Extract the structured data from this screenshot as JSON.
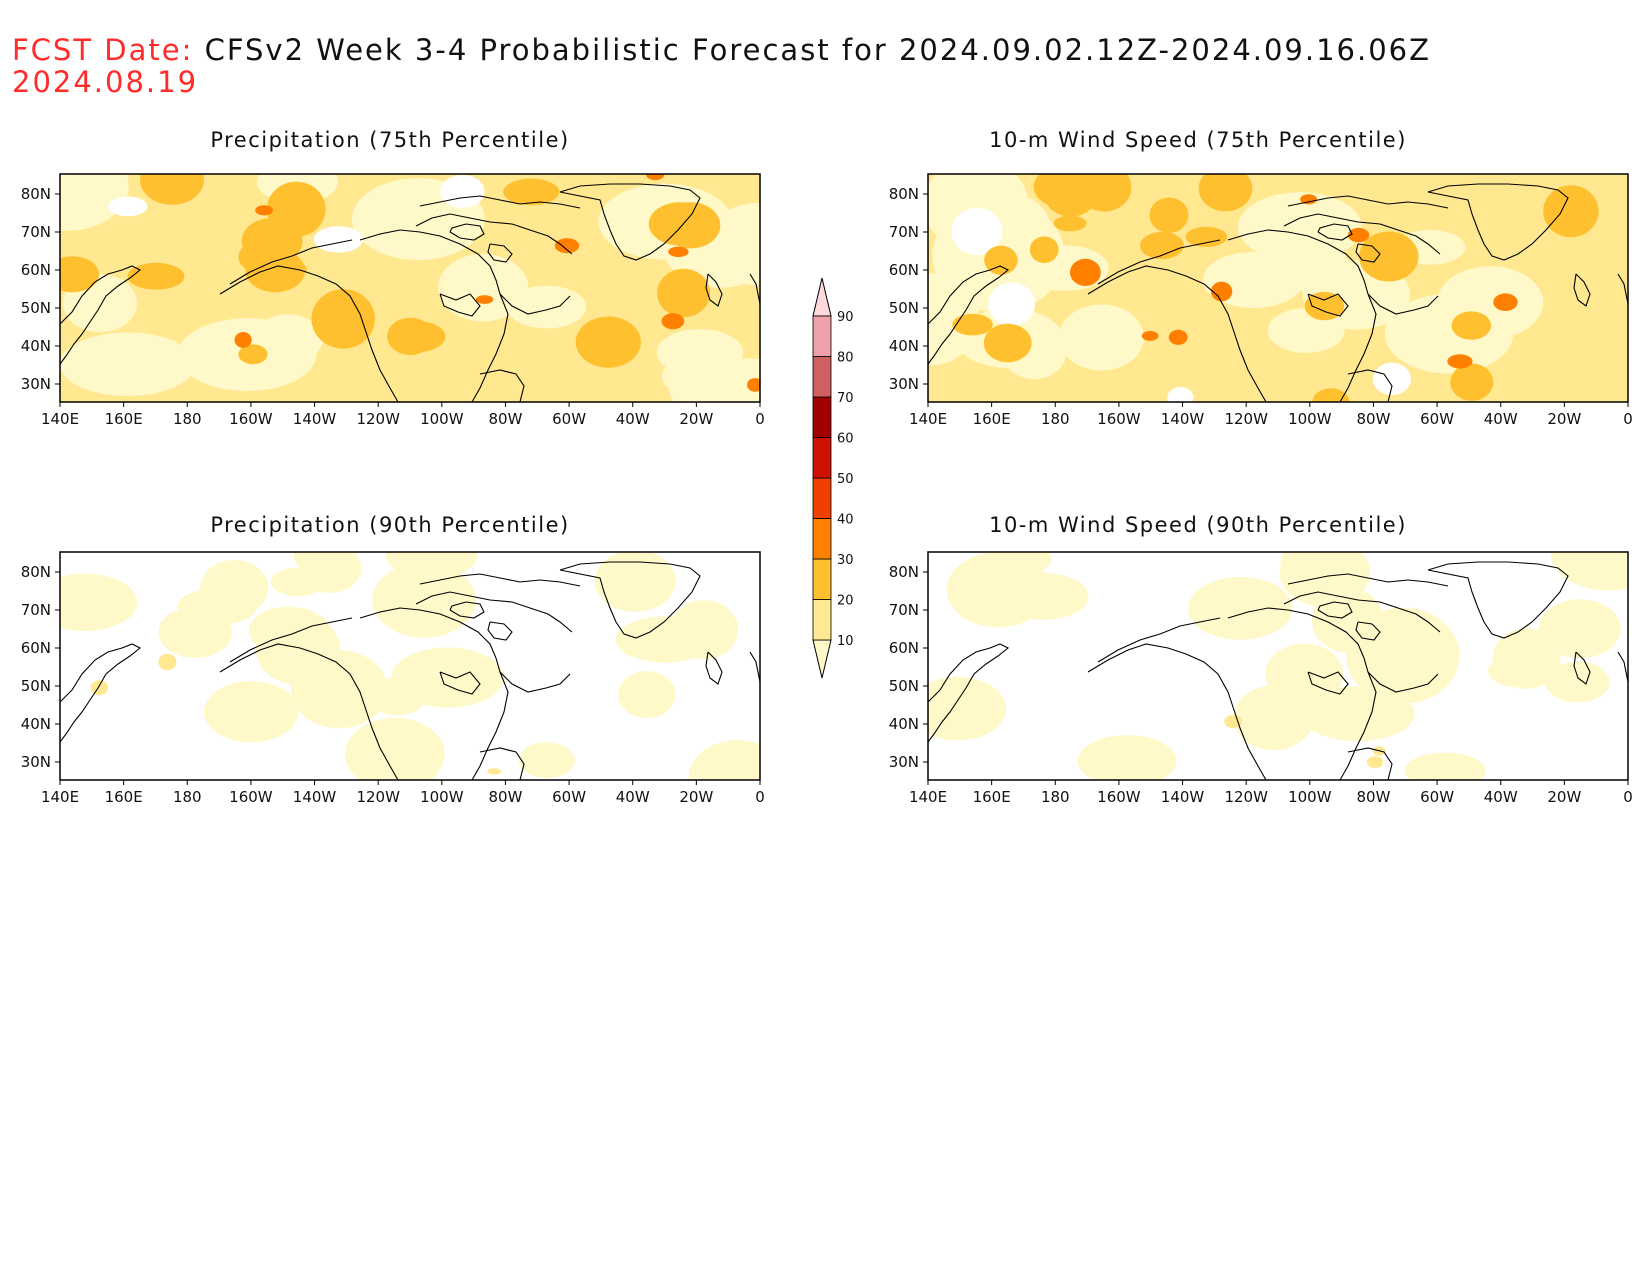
{
  "header": {
    "fcst_label": "FCST Date:",
    "title": "CFSv2 Week 3-4 Probabilistic Forecast for 2024.09.02.12Z-2024.09.16.06Z",
    "fcst_date": "2024.08.19"
  },
  "panels": [
    {
      "id": "precip75",
      "title": "Precipitation (75th Percentile)",
      "intensity": "high"
    },
    {
      "id": "wind75",
      "title": "10-m Wind Speed (75th Percentile)",
      "intensity": "high"
    },
    {
      "id": "precip90",
      "title": "Precipitation (90th Percentile)",
      "intensity": "low"
    },
    {
      "id": "wind90",
      "title": "10-m Wind Speed (90th Percentile)",
      "intensity": "low"
    }
  ],
  "axes": {
    "lon_ticks": [
      "140E",
      "160E",
      "180",
      "160W",
      "140W",
      "120W",
      "100W",
      "80W",
      "60W",
      "40W",
      "20W",
      "0"
    ],
    "lat_ticks": [
      "80N",
      "70N",
      "60N",
      "50N",
      "40N",
      "30N"
    ]
  },
  "colorbar": {
    "labels": [
      "10",
      "20",
      "30",
      "40",
      "50",
      "60",
      "70",
      "80",
      "90"
    ],
    "colors": [
      "#fff8c8",
      "#ffe890",
      "#ffc030",
      "#ff8000",
      "#f04000",
      "#d01000",
      "#a00000",
      "#d06060",
      "#f0a0a8",
      "#ffd8dc"
    ]
  }
}
